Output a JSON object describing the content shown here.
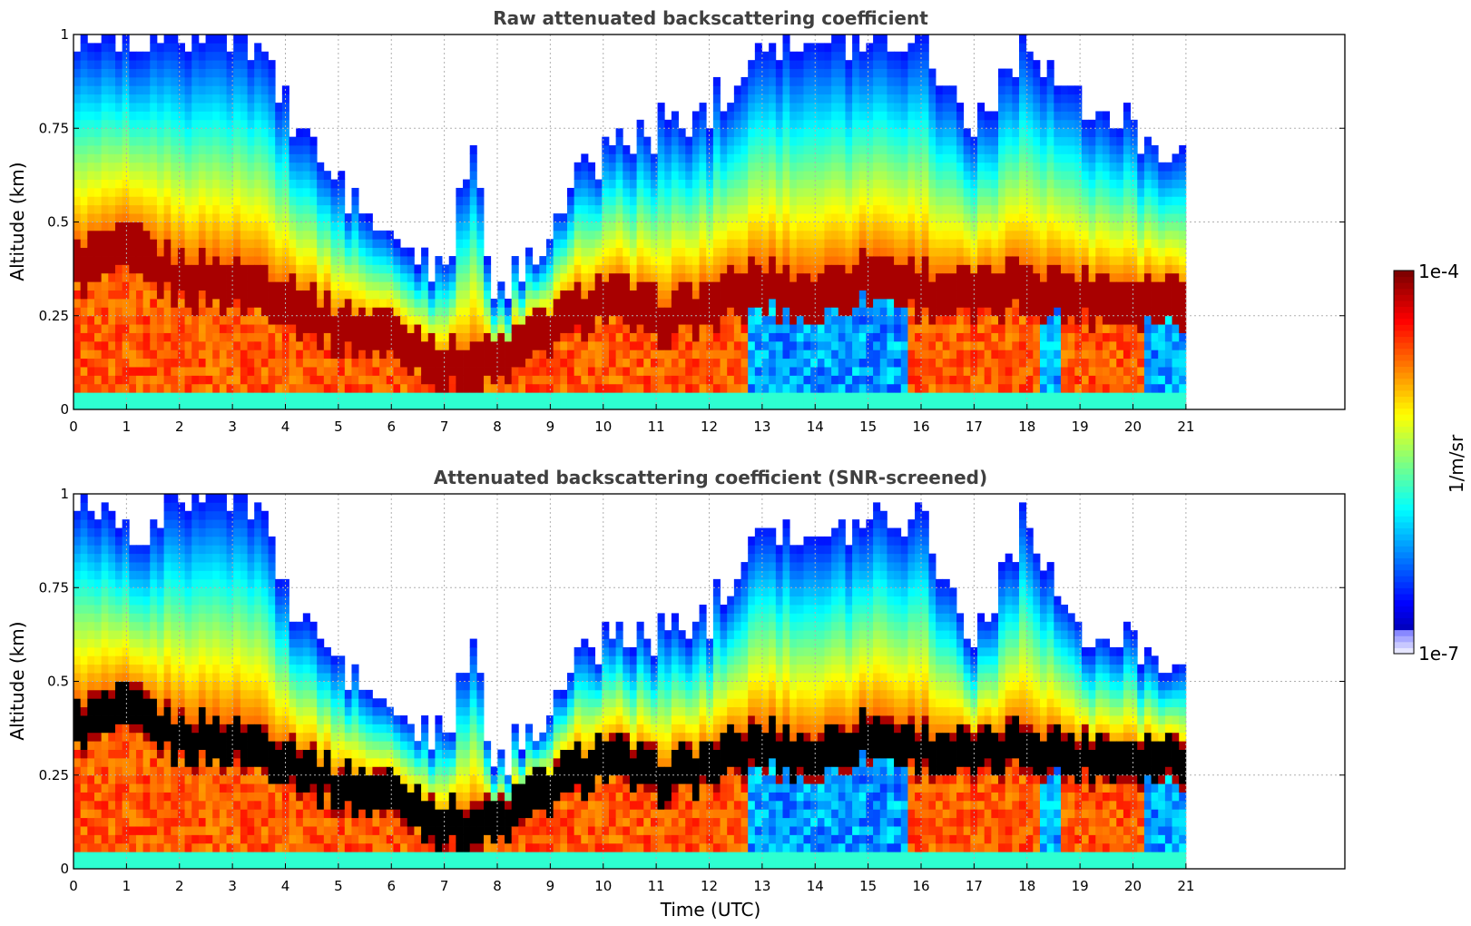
{
  "figure": {
    "xlabel": "Time (UTC)",
    "colorbar": {
      "label": "1/m/sr",
      "max_label": "1e-4",
      "min_label": "1e-7",
      "scale": "log",
      "range": [
        1e-07,
        0.0001
      ],
      "colormap": "jet"
    }
  },
  "chart_data": [
    {
      "type": "heatmap",
      "title": "Raw attenuated backscattering coefficient",
      "xlabel": "",
      "ylabel": "Altitude (km)",
      "xlim": [
        0,
        24
      ],
      "ylim": [
        0,
        1
      ],
      "x_ticks": [
        "0",
        "1",
        "2",
        "3",
        "4",
        "5",
        "6",
        "7",
        "8",
        "9",
        "10",
        "11",
        "12",
        "13",
        "14",
        "15",
        "16",
        "17",
        "18",
        "19",
        "20",
        "21"
      ],
      "y_ticks": [
        "0",
        "0.25",
        "0.5",
        "0.75",
        "1"
      ],
      "data_end_hour": 21,
      "grid": true,
      "mask_black": false,
      "boundary_layer_top_km": [
        [
          0,
          0.38
        ],
        [
          1,
          0.42
        ],
        [
          2,
          0.35
        ],
        [
          3,
          0.34
        ],
        [
          4,
          0.3
        ],
        [
          5,
          0.22
        ],
        [
          6,
          0.2
        ],
        [
          7,
          0.12
        ],
        [
          8,
          0.12
        ],
        [
          9,
          0.22
        ],
        [
          10,
          0.3
        ],
        [
          11,
          0.24
        ],
        [
          12,
          0.28
        ],
        [
          13,
          0.33
        ],
        [
          14,
          0.3
        ],
        [
          15,
          0.36
        ],
        [
          16,
          0.32
        ],
        [
          17,
          0.3
        ],
        [
          18,
          0.33
        ],
        [
          19,
          0.3
        ],
        [
          20,
          0.3
        ],
        [
          21,
          0.3
        ]
      ],
      "signal_top_km": [
        [
          0,
          1
        ],
        [
          1.5,
          1
        ],
        [
          2,
          1
        ],
        [
          3.5,
          1
        ],
        [
          4,
          0.8
        ],
        [
          5,
          0.6
        ],
        [
          6,
          0.45
        ],
        [
          7,
          0.35
        ],
        [
          7.5,
          0.7
        ],
        [
          8,
          0.28
        ],
        [
          9,
          0.5
        ],
        [
          10,
          0.7
        ],
        [
          11,
          0.75
        ],
        [
          12,
          0.8
        ],
        [
          13,
          1
        ],
        [
          14,
          0.95
        ],
        [
          15,
          1
        ],
        [
          16,
          1
        ],
        [
          17,
          0.75
        ],
        [
          18,
          1
        ],
        [
          19,
          0.8
        ],
        [
          20,
          0.75
        ],
        [
          21,
          0.7
        ]
      ]
    },
    {
      "type": "heatmap",
      "title": "Attenuated backscattering coefficient (SNR-screened)",
      "xlabel": "Time (UTC)",
      "ylabel": "Altitude (km)",
      "xlim": [
        0,
        24
      ],
      "ylim": [
        0,
        1
      ],
      "x_ticks": [
        "0",
        "1",
        "2",
        "3",
        "4",
        "5",
        "6",
        "7",
        "8",
        "9",
        "10",
        "11",
        "12",
        "13",
        "14",
        "15",
        "16",
        "17",
        "18",
        "19",
        "20",
        "21"
      ],
      "y_ticks": [
        "0",
        "0.25",
        "0.5",
        "0.75",
        "1"
      ],
      "data_end_hour": 21,
      "grid": true,
      "mask_black": true,
      "boundary_layer_top_km": [
        [
          0,
          0.38
        ],
        [
          1,
          0.42
        ],
        [
          2,
          0.35
        ],
        [
          3,
          0.34
        ],
        [
          4,
          0.3
        ],
        [
          5,
          0.22
        ],
        [
          6,
          0.2
        ],
        [
          7,
          0.12
        ],
        [
          8,
          0.12
        ],
        [
          9,
          0.22
        ],
        [
          10,
          0.3
        ],
        [
          11,
          0.24
        ],
        [
          12,
          0.28
        ],
        [
          13,
          0.33
        ],
        [
          14,
          0.3
        ],
        [
          15,
          0.36
        ],
        [
          16,
          0.32
        ],
        [
          17,
          0.3
        ],
        [
          18,
          0.33
        ],
        [
          19,
          0.3
        ],
        [
          20,
          0.3
        ],
        [
          21,
          0.3
        ]
      ],
      "signal_top_km": [
        [
          0,
          1
        ],
        [
          1.5,
          0.9
        ],
        [
          2,
          1
        ],
        [
          3.5,
          1
        ],
        [
          4,
          0.72
        ],
        [
          5,
          0.55
        ],
        [
          6,
          0.42
        ],
        [
          7,
          0.33
        ],
        [
          7.5,
          0.6
        ],
        [
          8,
          0.26
        ],
        [
          9,
          0.45
        ],
        [
          10,
          0.62
        ],
        [
          11,
          0.62
        ],
        [
          12,
          0.68
        ],
        [
          13,
          0.95
        ],
        [
          14,
          0.85
        ],
        [
          15,
          0.95
        ],
        [
          16,
          0.95
        ],
        [
          17,
          0.6
        ],
        [
          18,
          0.95
        ],
        [
          19,
          0.6
        ],
        [
          20,
          0.6
        ],
        [
          21,
          0.55
        ]
      ]
    }
  ]
}
